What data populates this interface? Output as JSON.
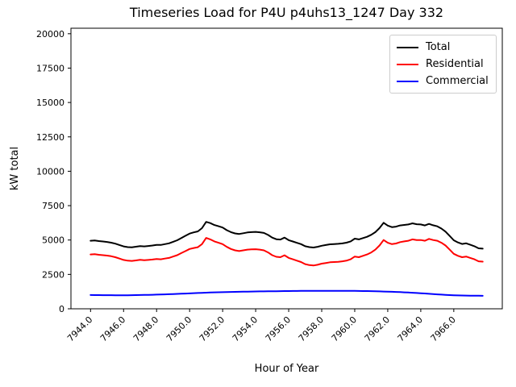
{
  "chart_data": {
    "type": "line",
    "title": "Timeseries Load for P4U p4uhs13_1247  Day 332",
    "xlabel": "Hour of Year",
    "ylabel": "kW total",
    "grid": false,
    "legend_position": "upper right",
    "xlim": [
      7942.8125,
      7968.9375
    ],
    "ylim": [
      0,
      20400
    ],
    "yticks": [
      0,
      2500,
      5000,
      7500,
      10000,
      12500,
      15000,
      17500,
      20000
    ],
    "xtick_values": [
      7944,
      7946,
      7948,
      7950,
      7952,
      7954,
      7956,
      7958,
      7960,
      7962,
      7964,
      7966
    ],
    "xtick_labels": [
      "7944.0",
      "7946.0",
      "7948.0",
      "7950.0",
      "7952.0",
      "7954.0",
      "7956.0",
      "7958.0",
      "7960.0",
      "7962.0",
      "7964.0",
      "7966.0"
    ],
    "x": [
      7944.0,
      7944.25,
      7944.5,
      7944.75,
      7945.0,
      7945.25,
      7945.5,
      7945.75,
      7946.0,
      7946.25,
      7946.5,
      7946.75,
      7947.0,
      7947.25,
      7947.5,
      7947.75,
      7948.0,
      7948.25,
      7948.5,
      7948.75,
      7949.0,
      7949.25,
      7949.5,
      7949.75,
      7950.0,
      7950.25,
      7950.5,
      7950.75,
      7951.0,
      7951.25,
      7951.5,
      7951.75,
      7952.0,
      7952.25,
      7952.5,
      7952.75,
      7953.0,
      7953.25,
      7953.5,
      7953.75,
      7954.0,
      7954.25,
      7954.5,
      7954.75,
      7955.0,
      7955.25,
      7955.5,
      7955.75,
      7956.0,
      7956.25,
      7956.5,
      7956.75,
      7957.0,
      7957.25,
      7957.5,
      7957.75,
      7958.0,
      7958.25,
      7958.5,
      7958.75,
      7959.0,
      7959.25,
      7959.5,
      7959.75,
      7960.0,
      7960.25,
      7960.5,
      7960.75,
      7961.0,
      7961.25,
      7961.5,
      7961.75,
      7962.0,
      7962.25,
      7962.5,
      7962.75,
      7963.0,
      7963.25,
      7963.5,
      7963.75,
      7964.0,
      7964.25,
      7964.5,
      7964.75,
      7965.0,
      7965.25,
      7965.5,
      7965.75,
      7966.0,
      7966.25,
      7966.5,
      7966.75,
      7967.0,
      7967.25,
      7967.5,
      7967.75
    ],
    "series": [
      {
        "name": "Total",
        "color": "#000000",
        "values": [
          4950,
          4968,
          4925,
          4892,
          4860,
          4808,
          4736,
          4635,
          4535,
          4487,
          4470,
          4515,
          4560,
          4538,
          4565,
          4602,
          4650,
          4640,
          4700,
          4760,
          4872,
          4985,
          5148,
          5310,
          5472,
          5555,
          5628,
          5860,
          6322,
          6233,
          6093,
          6002,
          5910,
          5718,
          5575,
          5482,
          5438,
          5494,
          5550,
          5575,
          5590,
          5564,
          5518,
          5372,
          5176,
          5060,
          5034,
          5178,
          4991,
          4894,
          4797,
          4699,
          4551,
          4483,
          4455,
          4506,
          4587,
          4638,
          4688,
          4708,
          4727,
          4756,
          4804,
          4902,
          5099,
          5046,
          5142,
          5237,
          5381,
          5574,
          5866,
          6257,
          6047,
          5936,
          5974,
          6061,
          6097,
          6132,
          6216,
          6149,
          6131,
          6062,
          6172,
          6071,
          5999,
          5830,
          5612,
          5298,
          4985,
          4825,
          4716,
          4759,
          4654,
          4550,
          4397,
          4375
        ]
      },
      {
        "name": "Residential",
        "color": "#ff0000",
        "values": [
          3950,
          3970,
          3930,
          3900,
          3870,
          3820,
          3750,
          3650,
          3550,
          3500,
          3480,
          3520,
          3560,
          3530,
          3550,
          3580,
          3620,
          3600,
          3650,
          3700,
          3800,
          3900,
          4050,
          4200,
          4350,
          4420,
          4480,
          4700,
          5150,
          5050,
          4900,
          4800,
          4700,
          4500,
          4350,
          4250,
          4200,
          4250,
          4300,
          4320,
          4330,
          4300,
          4250,
          4100,
          3900,
          3780,
          3750,
          3890,
          3700,
          3600,
          3500,
          3400,
          3250,
          3180,
          3150,
          3200,
          3280,
          3330,
          3380,
          3400,
          3420,
          3450,
          3500,
          3600,
          3800,
          3750,
          3850,
          3950,
          4100,
          4300,
          4600,
          5000,
          4800,
          4700,
          4750,
          4850,
          4900,
          4950,
          5050,
          5000,
          5000,
          4950,
          5080,
          5000,
          4950,
          4800,
          4600,
          4300,
          4000,
          3850,
          3750,
          3800,
          3700,
          3600,
          3450,
          3430
        ]
      },
      {
        "name": "Commercial",
        "color": "#0000ff",
        "values": [
          1000,
          998,
          995,
          992,
          990,
          988,
          986,
          985,
          985,
          987,
          990,
          995,
          1000,
          1008,
          1015,
          1022,
          1030,
          1040,
          1050,
          1060,
          1072,
          1085,
          1098,
          1110,
          1122,
          1135,
          1148,
          1160,
          1172,
          1183,
          1193,
          1202,
          1210,
          1218,
          1225,
          1232,
          1238,
          1244,
          1250,
          1255,
          1260,
          1264,
          1268,
          1272,
          1276,
          1280,
          1284,
          1288,
          1291,
          1294,
          1297,
          1299,
          1301,
          1303,
          1305,
          1306,
          1307,
          1308,
          1308,
          1308,
          1307,
          1306,
          1304,
          1302,
          1299,
          1296,
          1292,
          1287,
          1281,
          1274,
          1266,
          1257,
          1247,
          1236,
          1224,
          1211,
          1197,
          1182,
          1166,
          1149,
          1131,
          1112,
          1092,
          1071,
          1049,
          1030,
          1012,
          998,
          985,
          975,
          966,
          959,
          954,
          950,
          947,
          945
        ]
      }
    ]
  }
}
